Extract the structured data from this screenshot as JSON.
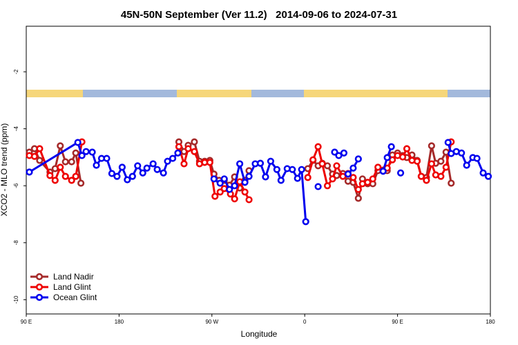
{
  "chart_data": {
    "type": "line",
    "title": "45N-50N September (Ver 11.2)   2014-09-06 to 2024-07-31",
    "x_label": "Longitude",
    "y_label": "XCO2 - MLO trend (ppm)",
    "xlim": [
      90,
      540
    ],
    "ylim": [
      -10.5,
      -0.4
    ],
    "xticks": [
      {
        "value": 90,
        "label": "90 E"
      },
      {
        "value": 180,
        "label": "180"
      },
      {
        "value": 270,
        "label": "90 W"
      },
      {
        "value": 360,
        "label": "0"
      },
      {
        "value": 450,
        "label": "90 E"
      },
      {
        "value": 540,
        "label": "180"
      }
    ],
    "yticks": [
      -10,
      -8,
      -6,
      -4,
      -2
    ],
    "grid": false,
    "legend": "bottomleft",
    "series": [
      {
        "name": "Land Nadir",
        "color": "#a52a2a",
        "x": [
          93,
          98,
          103,
          113,
          118,
          123,
          128,
          134,
          138,
          143,
          null,
          238,
          243,
          247,
          253,
          258,
          263,
          268,
          272,
          277,
          282,
          287,
          292,
          297,
          302,
          306,
          null,
          363,
          368,
          373,
          377,
          382,
          387,
          391,
          397,
          402,
          407,
          412,
          416,
          421,
          426,
          431,
          436,
          440,
          445,
          450,
          455,
          459,
          464,
          469,
          473,
          478,
          483,
          487,
          492,
          497,
          502
        ],
        "values": [
          -4.82,
          -4.7,
          -5.11,
          -5.52,
          -5.4,
          -4.6,
          -5.16,
          -5.16,
          -4.85,
          -5.91,
          null,
          -4.46,
          -4.8,
          -4.58,
          -4.46,
          -5.14,
          -5.14,
          -5.11,
          -5.59,
          -5.81,
          -5.81,
          -5.98,
          -5.69,
          -6.08,
          -5.81,
          -5.47,
          null,
          -5.4,
          -5.11,
          -5.3,
          -5.21,
          -5.3,
          -5.59,
          -5.64,
          -5.57,
          -5.84,
          -5.88,
          -6.44,
          -5.76,
          -5.93,
          -5.93,
          -5.47,
          -5.45,
          -5.47,
          -4.92,
          -4.85,
          -4.94,
          -5.01,
          -4.92,
          -5.11,
          -5.67,
          -5.71,
          -4.6,
          -5.21,
          -5.14,
          -4.82,
          -5.91
        ]
      },
      {
        "name": "Land Glint",
        "color": "#ee0000",
        "x": [
          93,
          98,
          103,
          113,
          118,
          123,
          128,
          134,
          138,
          144,
          null,
          238,
          243,
          247,
          253,
          258,
          263,
          268,
          273,
          278,
          282,
          288,
          292,
          297,
          302,
          306,
          null,
          363,
          368,
          373,
          377,
          382,
          387,
          391,
          397,
          402,
          407,
          412,
          416,
          421,
          426,
          431,
          436,
          440,
          445,
          450,
          455,
          459,
          464,
          469,
          473,
          478,
          483,
          487,
          492,
          497,
          502
        ],
        "values": [
          -4.94,
          -4.97,
          -4.7,
          -5.64,
          -5.81,
          -5.35,
          -5.67,
          -5.81,
          -5.67,
          -4.46,
          null,
          -4.63,
          -5.23,
          -4.7,
          -4.8,
          -5.23,
          -5.18,
          -5.18,
          -6.37,
          -6.22,
          -6.1,
          -6.29,
          -6.46,
          -5.86,
          -6.22,
          -6.49,
          null,
          -5.71,
          -5.09,
          -4.63,
          -5.23,
          -6.0,
          -5.76,
          -5.3,
          -5.67,
          -5.57,
          -5.71,
          -6.13,
          -5.93,
          -5.88,
          -5.76,
          -5.35,
          -5.47,
          -5.38,
          -5.09,
          -4.94,
          -4.99,
          -4.7,
          -5.11,
          -5.14,
          -5.67,
          -5.81,
          -5.23,
          -5.62,
          -5.67,
          -5.35,
          -4.46
        ]
      },
      {
        "name": "Ocean Glint",
        "color": "#0000ee",
        "x": [
          93,
          140,
          144,
          148,
          154,
          158,
          163,
          168,
          173,
          178,
          183,
          188,
          193,
          198,
          203,
          207,
          213,
          217,
          223,
          227,
          232,
          237,
          null,
          272,
          278,
          282,
          287,
          292,
          297,
          302,
          306,
          312,
          317,
          322,
          327,
          333,
          337,
          343,
          348,
          353,
          357,
          361,
          null,
          373,
          null,
          389,
          393,
          398,
          null,
          402,
          407,
          412,
          null,
          436,
          440,
          444,
          null,
          453,
          null,
          499,
          502,
          507,
          512,
          517,
          523,
          527,
          533,
          538
        ],
        "values": [
          -5.52,
          -4.48,
          -4.94,
          -4.8,
          -4.82,
          -5.28,
          -5.04,
          -5.04,
          -5.57,
          -5.67,
          -5.35,
          -5.79,
          -5.67,
          -5.3,
          -5.55,
          -5.38,
          -5.23,
          -5.43,
          -5.55,
          -5.14,
          -5.04,
          -4.85,
          null,
          -5.76,
          -5.91,
          -5.76,
          -6.13,
          -6.0,
          -5.23,
          -5.88,
          -5.67,
          -5.23,
          -5.21,
          -5.69,
          -5.14,
          -5.43,
          -5.81,
          -5.4,
          -5.43,
          -5.74,
          -5.43,
          -7.26,
          null,
          -6.03,
          null,
          -4.82,
          -4.94,
          -4.85,
          null,
          -5.59,
          -5.38,
          -5.06,
          null,
          -5.49,
          -5.01,
          -4.63,
          null,
          -5.55,
          null,
          -4.48,
          -4.87,
          -4.8,
          -4.85,
          -5.28,
          -5.01,
          -5.04,
          -5.55,
          -5.67
        ]
      }
    ]
  }
}
